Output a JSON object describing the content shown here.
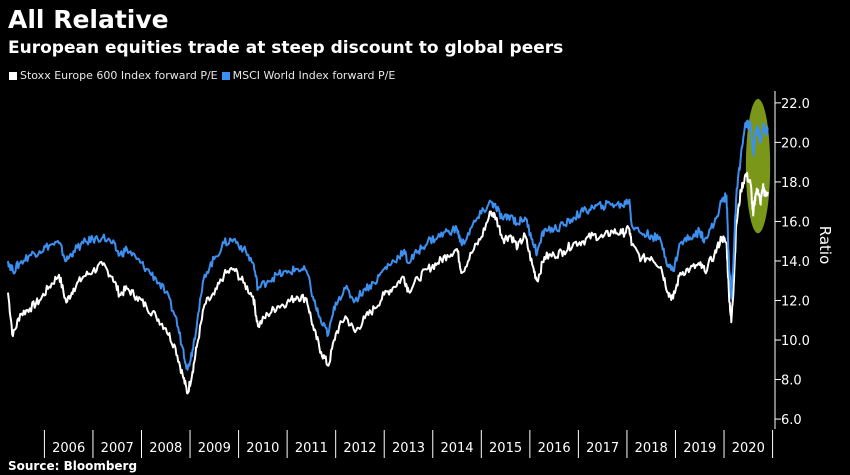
{
  "header": {
    "title": "All Relative",
    "subtitle": "European equities trade at steep discount to global peers"
  },
  "legend": {
    "items": [
      {
        "label": "Stoxx Europe 600 Index forward P/E",
        "color": "#ffffff"
      },
      {
        "label": "MSCI World Index forward P/E",
        "color": "#3d8ff0"
      }
    ]
  },
  "footer": {
    "source": "Source: Bloomberg"
  },
  "chart_data": {
    "type": "line",
    "title": "All Relative",
    "subtitle": "European equities trade at steep discount to global peers",
    "xlabel": "",
    "ylabel": "Ratio",
    "xlim": [
      2005.25,
      2021.05
    ],
    "ylim": [
      5.7,
      22.5
    ],
    "y_ticks": [
      6.0,
      8.0,
      10.0,
      12.0,
      14.0,
      16.0,
      18.0,
      20.0,
      22.0
    ],
    "y_tick_labels": [
      "6.0",
      "8.0",
      "10.0",
      "12.0",
      "14.0",
      "16.0",
      "18.0",
      "20.0",
      "22.0"
    ],
    "y_axis_side": "right",
    "x_categories": [
      "2006",
      "2007",
      "2008",
      "2009",
      "2010",
      "2011",
      "2012",
      "2013",
      "2014",
      "2015",
      "2016",
      "2017",
      "2018",
      "2019",
      "2020"
    ],
    "grid": false,
    "highlight": {
      "shape": "ellipse",
      "fill": "#8fb21e",
      "x_range": [
        2020.45,
        2020.95
      ],
      "y_range": [
        15.4,
        22.2
      ]
    },
    "series": [
      {
        "name": "Stoxx Europe 600 Index forward P/E",
        "color": "#ffffff",
        "x": [
          2005.25,
          2005.35,
          2005.5,
          2005.7,
          2005.9,
          2006.1,
          2006.3,
          2006.45,
          2006.6,
          2006.8,
          2007.0,
          2007.2,
          2007.4,
          2007.55,
          2007.7,
          2007.9,
          2008.1,
          2008.3,
          2008.5,
          2008.7,
          2008.85,
          2008.95,
          2009.05,
          2009.15,
          2009.3,
          2009.5,
          2009.7,
          2009.9,
          2010.1,
          2010.3,
          2010.4,
          2010.6,
          2010.8,
          2011.0,
          2011.2,
          2011.4,
          2011.55,
          2011.7,
          2011.85,
          2012.0,
          2012.2,
          2012.4,
          2012.6,
          2012.8,
          2013.0,
          2013.2,
          2013.4,
          2013.5,
          2013.7,
          2013.9,
          2014.1,
          2014.3,
          2014.5,
          2014.6,
          2014.8,
          2015.0,
          2015.2,
          2015.3,
          2015.45,
          2015.6,
          2015.75,
          2015.9,
          2016.05,
          2016.15,
          2016.3,
          2016.5,
          2016.7,
          2016.9,
          2017.1,
          2017.3,
          2017.5,
          2017.7,
          2017.9,
          2018.05,
          2018.1,
          2018.3,
          2018.5,
          2018.7,
          2018.85,
          2018.95,
          2019.1,
          2019.3,
          2019.5,
          2019.6,
          2019.8,
          2019.95,
          2020.05,
          2020.1,
          2020.15,
          2020.2,
          2020.25,
          2020.35,
          2020.45,
          2020.55,
          2020.6,
          2020.65,
          2020.7,
          2020.75,
          2020.8,
          2020.85,
          2020.9
        ],
        "values": [
          12.4,
          10.2,
          11.3,
          11.6,
          12.0,
          12.7,
          13.3,
          11.9,
          12.6,
          13.2,
          13.5,
          13.8,
          13.2,
          12.3,
          12.6,
          12.2,
          11.7,
          11.2,
          10.6,
          9.6,
          8.2,
          7.3,
          8.4,
          9.8,
          11.8,
          12.3,
          13.3,
          13.6,
          12.9,
          12.2,
          10.7,
          11.3,
          11.7,
          11.9,
          12.2,
          12.1,
          10.5,
          9.4,
          8.7,
          10.3,
          11.2,
          10.4,
          11.1,
          11.6,
          12.3,
          12.7,
          13.2,
          12.5,
          13.1,
          13.6,
          13.9,
          14.3,
          14.6,
          13.4,
          14.4,
          15.2,
          16.5,
          16.2,
          15.1,
          15.3,
          14.7,
          15.3,
          13.8,
          13.0,
          14.2,
          14.3,
          14.5,
          14.9,
          15.0,
          15.3,
          15.2,
          15.5,
          15.4,
          15.6,
          14.8,
          14.1,
          14.2,
          13.7,
          12.4,
          12.1,
          13.4,
          13.6,
          13.8,
          13.5,
          14.3,
          15.2,
          14.9,
          12.4,
          10.9,
          12.8,
          15.8,
          17.6,
          18.4,
          17.9,
          16.3,
          17.4,
          17.6,
          16.9,
          17.8,
          17.3,
          17.5
        ]
      },
      {
        "name": "MSCI World Index forward P/E",
        "color": "#3d8ff0",
        "x": [
          2005.25,
          2005.35,
          2005.5,
          2005.7,
          2005.9,
          2006.1,
          2006.3,
          2006.45,
          2006.6,
          2006.8,
          2007.0,
          2007.2,
          2007.4,
          2007.55,
          2007.7,
          2007.9,
          2008.1,
          2008.3,
          2008.5,
          2008.7,
          2008.85,
          2008.95,
          2009.05,
          2009.15,
          2009.3,
          2009.5,
          2009.7,
          2009.9,
          2010.1,
          2010.3,
          2010.4,
          2010.6,
          2010.8,
          2011.0,
          2011.2,
          2011.4,
          2011.55,
          2011.7,
          2011.85,
          2012.0,
          2012.2,
          2012.4,
          2012.6,
          2012.8,
          2013.0,
          2013.2,
          2013.4,
          2013.5,
          2013.7,
          2013.9,
          2014.1,
          2014.3,
          2014.5,
          2014.6,
          2014.8,
          2015.0,
          2015.2,
          2015.3,
          2015.45,
          2015.6,
          2015.75,
          2015.9,
          2016.05,
          2016.15,
          2016.3,
          2016.5,
          2016.7,
          2016.9,
          2017.1,
          2017.3,
          2017.5,
          2017.7,
          2017.9,
          2018.05,
          2018.1,
          2018.3,
          2018.5,
          2018.7,
          2018.85,
          2018.95,
          2019.1,
          2019.3,
          2019.5,
          2019.6,
          2019.8,
          2019.95,
          2020.05,
          2020.1,
          2020.15,
          2020.2,
          2020.25,
          2020.35,
          2020.45,
          2020.55,
          2020.6,
          2020.65,
          2020.7,
          2020.75,
          2020.8,
          2020.85,
          2020.9
        ],
        "values": [
          14.0,
          13.5,
          13.9,
          14.3,
          14.5,
          14.8,
          14.9,
          14.0,
          14.5,
          14.9,
          15.1,
          15.2,
          14.9,
          14.3,
          14.6,
          14.1,
          13.6,
          13.1,
          12.4,
          11.2,
          9.6,
          8.5,
          9.5,
          11.0,
          13.3,
          14.1,
          14.9,
          15.1,
          14.6,
          13.9,
          12.6,
          13.0,
          13.3,
          13.4,
          13.6,
          13.5,
          12.0,
          10.9,
          10.3,
          11.9,
          12.6,
          12.0,
          12.6,
          12.9,
          13.6,
          14.0,
          14.5,
          13.9,
          14.5,
          15.0,
          15.2,
          15.5,
          15.6,
          14.8,
          15.7,
          16.4,
          17.0,
          16.7,
          16.1,
          16.3,
          15.9,
          16.2,
          15.1,
          14.4,
          15.6,
          15.6,
          15.8,
          16.2,
          16.5,
          16.7,
          16.8,
          16.9,
          16.8,
          17.1,
          15.8,
          15.4,
          15.3,
          15.0,
          13.8,
          13.5,
          14.9,
          15.2,
          15.5,
          15.1,
          15.9,
          17.0,
          17.3,
          14.0,
          12.1,
          14.3,
          17.2,
          19.4,
          21.0,
          20.8,
          19.4,
          20.5,
          20.7,
          20.1,
          20.8,
          20.5,
          20.6
        ]
      }
    ]
  }
}
